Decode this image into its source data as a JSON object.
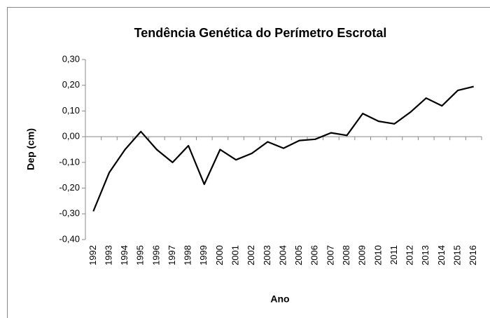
{
  "chart_data": {
    "type": "line",
    "title": "Tendência Genética do Perímetro Escrotal",
    "x_label": "Ano",
    "y_label": "Dep (cm)",
    "categories": [
      "1992",
      "1993",
      "1994",
      "1995",
      "1996",
      "1997",
      "1998",
      "1999",
      "2000",
      "2001",
      "2002",
      "2003",
      "2004",
      "2005",
      "2006",
      "2007",
      "2008",
      "2009",
      "2010",
      "2011",
      "2012",
      "2013",
      "2014",
      "2015",
      "2016"
    ],
    "values": [
      -0.29,
      -0.14,
      -0.05,
      0.02,
      -0.05,
      -0.1,
      -0.035,
      -0.185,
      -0.05,
      -0.09,
      -0.065,
      -0.02,
      -0.045,
      -0.015,
      -0.01,
      0.015,
      0.005,
      0.09,
      0.06,
      0.05,
      0.095,
      0.15,
      0.12,
      0.18,
      0.195
    ],
    "color": "#000000",
    "ylim": [
      -0.4,
      0.3
    ],
    "yticks": [
      {
        "value": -0.4,
        "label": "-0,40"
      },
      {
        "value": -0.3,
        "label": "-0,30"
      },
      {
        "value": -0.2,
        "label": "-0,20"
      },
      {
        "value": -0.1,
        "label": "-0,10"
      },
      {
        "value": 0,
        "label": "0,00"
      },
      {
        "value": 0.1,
        "label": "0,10"
      },
      {
        "value": 0.2,
        "label": "0,20"
      },
      {
        "value": 0.3,
        "label": "0,30"
      }
    ],
    "grid": false
  }
}
